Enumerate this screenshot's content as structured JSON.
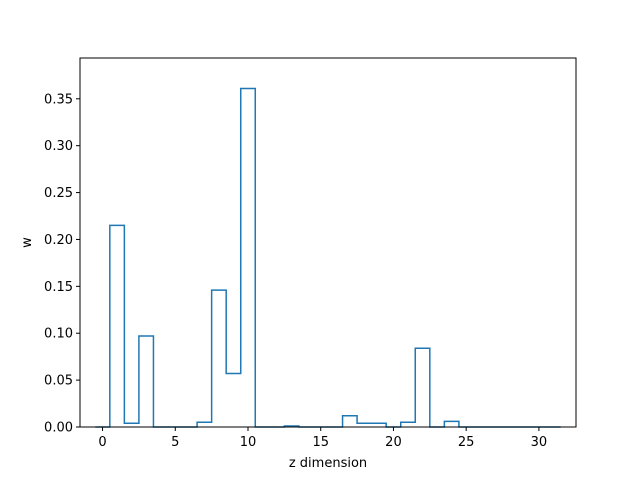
{
  "chart_data": {
    "type": "step",
    "title": "",
    "xlabel": "z dimension",
    "ylabel": "w",
    "xlim": [
      -1.55,
      32.55
    ],
    "ylim": [
      0,
      0.3935
    ],
    "xticks": [
      0,
      5,
      10,
      15,
      20,
      25,
      30
    ],
    "yticks": [
      0.0,
      0.05,
      0.1,
      0.15,
      0.2,
      0.25,
      0.3,
      0.35
    ],
    "grid": false,
    "series": [
      {
        "color": "#1f77b4",
        "x": [
          0,
          1,
          2,
          3,
          4,
          5,
          6,
          7,
          8,
          9,
          10,
          11,
          12,
          13,
          14,
          15,
          16,
          17,
          18,
          19,
          20,
          21,
          22,
          23,
          24,
          25,
          26,
          27,
          28,
          29,
          30,
          31
        ],
        "values": [
          0.0,
          0.215,
          0.004,
          0.097,
          0.0,
          0.0,
          0.0,
          0.005,
          0.146,
          0.057,
          0.361,
          0.0,
          0.0,
          0.001,
          0.0,
          0.0,
          0.0,
          0.012,
          0.004,
          0.004,
          0.0,
          0.005,
          0.084,
          0.0,
          0.006,
          0.0,
          0.0,
          0.0,
          0.0,
          0.0,
          0.0,
          0.0
        ]
      }
    ]
  }
}
